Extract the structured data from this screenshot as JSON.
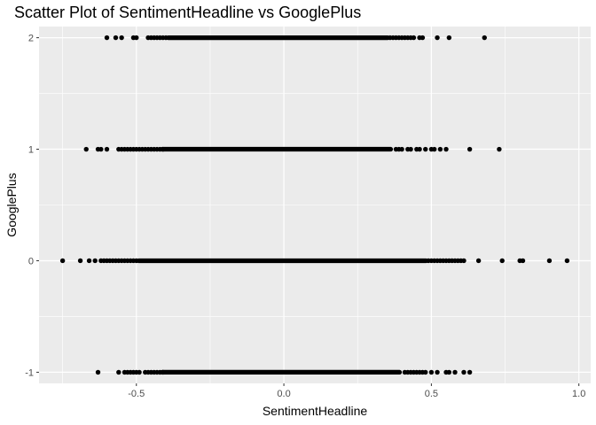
{
  "chart_data": {
    "type": "scatter",
    "title": "Scatter Plot of SentimentHeadline vs GooglePlus",
    "xlabel": "SentimentHeadline",
    "ylabel": "GooglePlus",
    "xlim": [
      -0.83,
      1.04
    ],
    "ylim": [
      -1.1,
      2.1
    ],
    "x_ticks": [
      -0.5,
      0.0,
      0.5,
      1.0
    ],
    "x_tick_labels": [
      "-0.5",
      "0.0",
      "0.5",
      "1.0"
    ],
    "y_ticks": [
      -1,
      0,
      1,
      2
    ],
    "y_tick_labels": [
      "-1",
      "0",
      "1",
      "2"
    ],
    "grid": true,
    "panel_color": "#ebebeb",
    "grid_color": "#ffffff",
    "point_color": "#000000",
    "rows": [
      {
        "y": 2,
        "points": [
          -0.6,
          -0.57,
          -0.55,
          -0.51,
          -0.5,
          -0.46,
          -0.45,
          -0.44,
          -0.43,
          -0.42,
          -0.41,
          -0.4,
          0.36,
          0.37,
          0.38,
          0.39,
          0.4,
          0.41,
          0.42,
          0.43,
          0.44,
          0.46,
          0.47,
          0.52,
          0.56,
          0.68
        ],
        "dense_range": [
          -0.4,
          0.36
        ]
      },
      {
        "y": 1,
        "points": [
          -0.67,
          -0.63,
          -0.62,
          -0.6,
          -0.56,
          -0.55,
          -0.54,
          -0.53,
          -0.52,
          -0.51,
          -0.5,
          -0.49,
          -0.48,
          -0.47,
          -0.46,
          -0.45,
          -0.44,
          -0.43,
          -0.42,
          -0.41,
          0.38,
          0.39,
          0.4,
          0.42,
          0.43,
          0.45,
          0.46,
          0.48,
          0.5,
          0.51,
          0.53,
          0.55,
          0.63,
          0.73
        ],
        "dense_range": [
          -0.42,
          0.37
        ]
      },
      {
        "y": 0,
        "points": [
          -0.75,
          -0.69,
          -0.66,
          -0.64,
          -0.62,
          -0.61,
          -0.6,
          -0.59,
          -0.58,
          -0.57,
          -0.56,
          -0.55,
          -0.54,
          -0.53,
          -0.52,
          -0.51,
          -0.5,
          0.49,
          0.5,
          0.51,
          0.52,
          0.53,
          0.54,
          0.55,
          0.56,
          0.57,
          0.58,
          0.59,
          0.6,
          0.61,
          0.66,
          0.74,
          0.8,
          0.81,
          0.9,
          0.96
        ],
        "dense_range": [
          -0.5,
          0.49
        ]
      },
      {
        "y": -1,
        "points": [
          -0.63,
          -0.56,
          -0.54,
          -0.53,
          -0.52,
          -0.51,
          -0.5,
          -0.49,
          -0.47,
          -0.46,
          -0.45,
          -0.44,
          -0.43,
          -0.42,
          -0.41,
          0.41,
          0.42,
          0.43,
          0.44,
          0.45,
          0.46,
          0.47,
          0.48,
          0.5,
          0.52,
          0.55,
          0.56,
          0.58,
          0.61,
          0.63
        ],
        "dense_range": [
          -0.42,
          0.4
        ]
      }
    ]
  }
}
